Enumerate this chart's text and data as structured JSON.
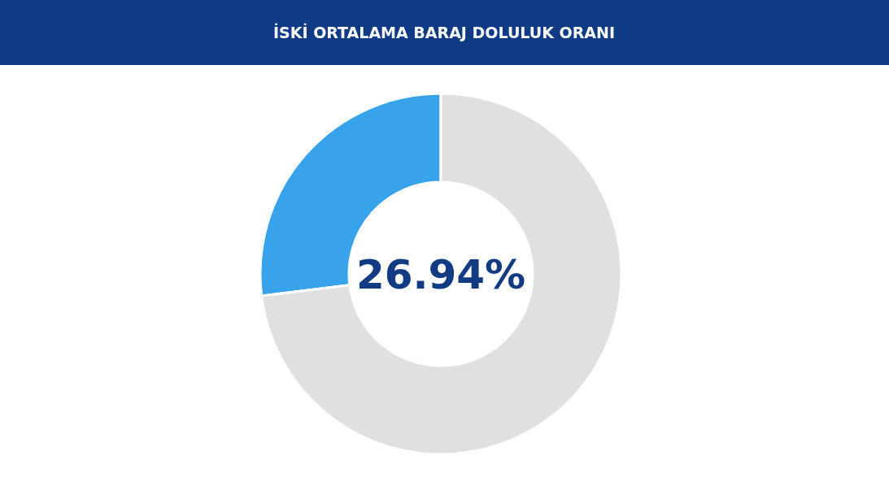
{
  "chart_data": {
    "type": "donut",
    "title": "İSKİ ORTALAMA BARAJ DOLULUK ORANI",
    "categories": [
      null,
      null
    ],
    "values": [
      26.94,
      73.06
    ],
    "colors": [
      "#38a2eb",
      "#e0e0e0"
    ],
    "annotations": [
      "26.94%"
    ]
  }
}
